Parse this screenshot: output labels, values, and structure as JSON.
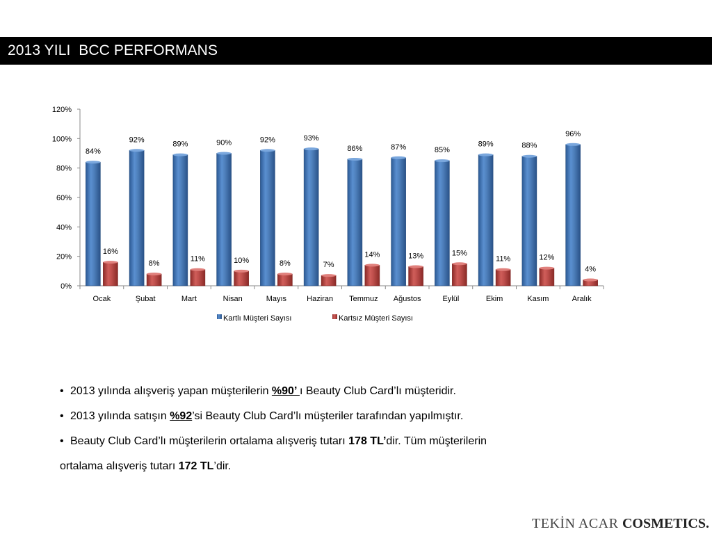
{
  "slide": {
    "title": "2013 YILI  BCC PERFORMANS"
  },
  "chart_data": {
    "type": "bar",
    "categories": [
      "Ocak",
      "Şubat",
      "Mart",
      "Nisan",
      "Mayıs",
      "Haziran",
      "Temmuz",
      "Ağustos",
      "Eylül",
      "Ekim",
      "Kasım",
      "Aralık"
    ],
    "series": [
      {
        "name": "Kartlı Müşteri Sayısı",
        "color": "#4f81bd",
        "values": [
          84,
          92,
          89,
          90,
          92,
          93,
          86,
          87,
          85,
          89,
          88,
          96
        ],
        "labels": [
          "84%",
          "92%",
          "89%",
          "90%",
          "92%",
          "93%",
          "86%",
          "87%",
          "85%",
          "89%",
          "88%",
          "96%"
        ]
      },
      {
        "name": "Kartsız Müşteri Sayısı",
        "color": "#c0504d",
        "values": [
          16,
          8,
          11,
          10,
          8,
          7,
          14,
          13,
          15,
          11,
          12,
          4
        ],
        "labels": [
          "16%",
          "8%",
          "11%",
          "10%",
          "8%",
          "7%",
          "14%",
          "13%",
          "15%",
          "11%",
          "12%",
          "4%"
        ]
      }
    ],
    "yticks": [
      "0%",
      "20%",
      "40%",
      "60%",
      "80%",
      "100%",
      "120%"
    ],
    "ylim": [
      0,
      120
    ],
    "legend_position": "bottom",
    "grid": false,
    "title": "",
    "xlabel": "",
    "ylabel": ""
  },
  "bullets": [
    {
      "pre": "2013 yılında alışveriş yapan müşterilerin ",
      "emph": "%90’ ",
      "post": "ı Beauty Club Card’lı müşteridir."
    },
    {
      "pre": "2013 yılında satışın ",
      "emph": "%92",
      "post": "’si Beauty Club Card’lı müşteriler tarafından yapılmıştır."
    },
    {
      "pre": "Beauty Club Card’lı müşterilerin ortalama alışveriş tutarı ",
      "emph": "178 TL’",
      "post": "dir. Tüm müşterilerin"
    },
    {
      "pre": "ortalama alışveriş tutarı ",
      "emph": "172 TL",
      "post": "’dir."
    }
  ],
  "logo": {
    "part1": "TEKİN ACAR ",
    "part2": "COSMETICS."
  }
}
